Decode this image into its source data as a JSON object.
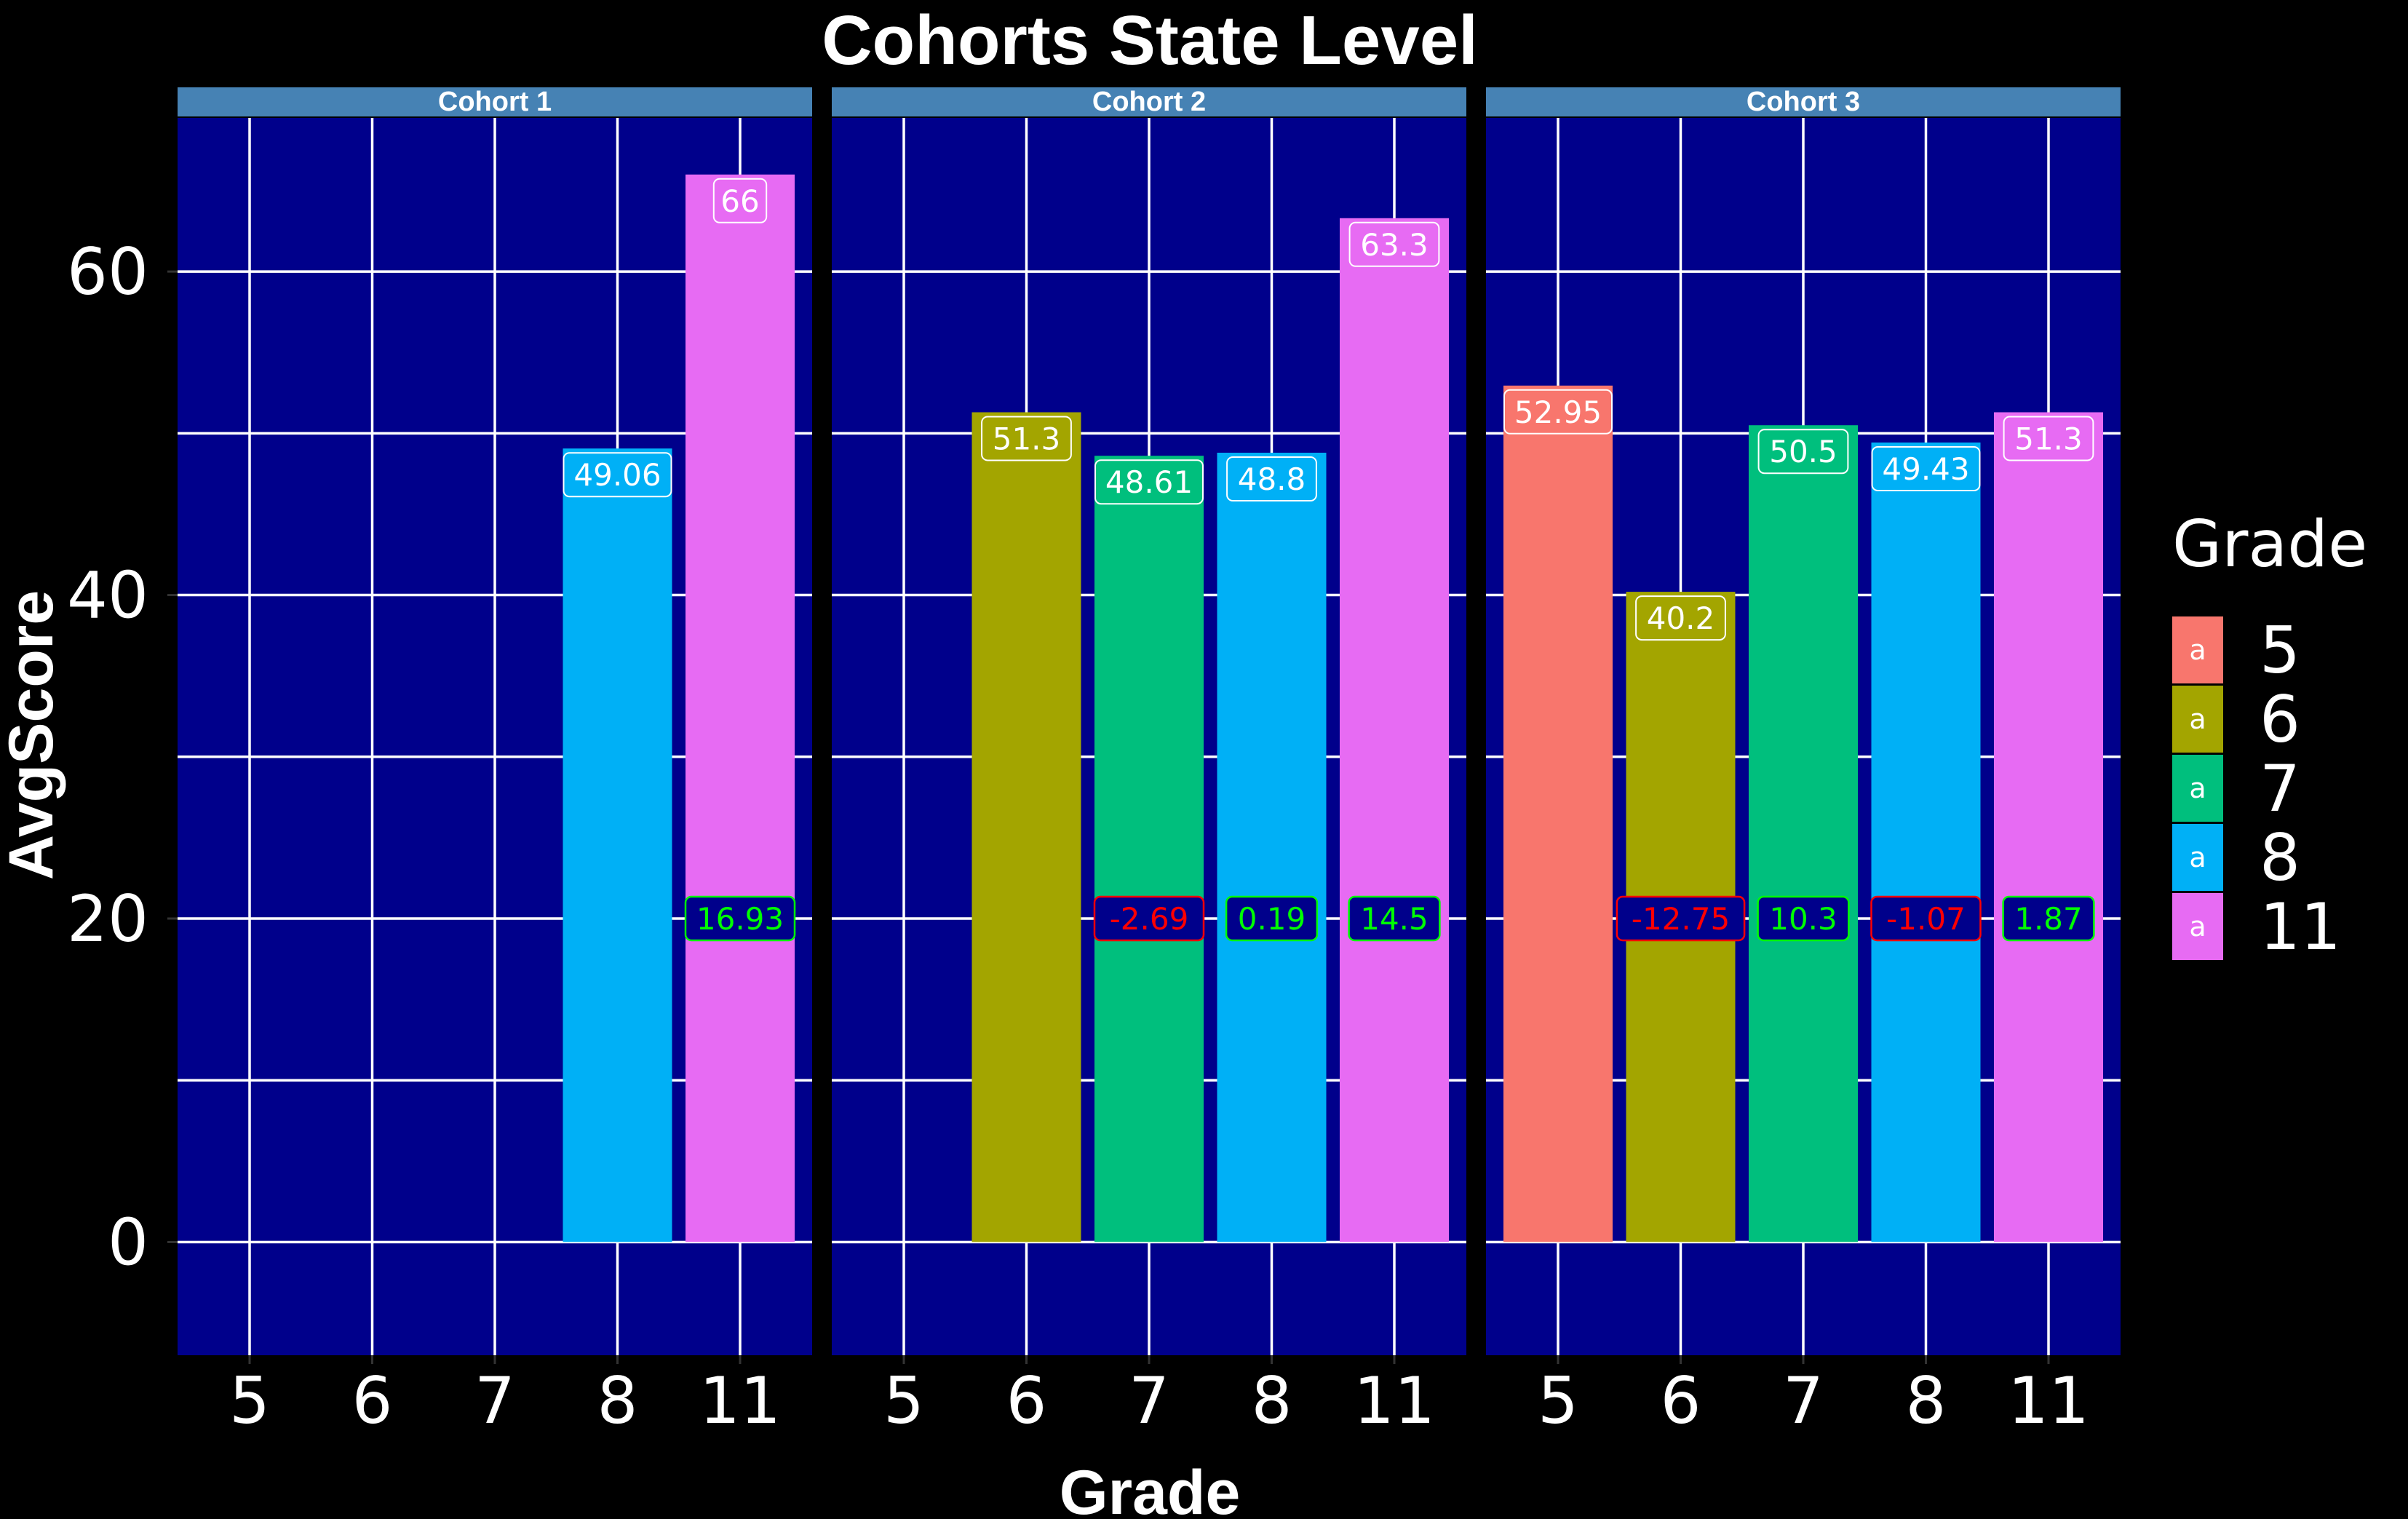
{
  "chart_data": {
    "type": "bar",
    "title": "Cohorts State Level",
    "xlabel": "Grade",
    "ylabel": "AvgScore",
    "categories": [
      "5",
      "6",
      "7",
      "8",
      "11"
    ],
    "ylim": [
      -7,
      69.5
    ],
    "yticks": [
      0,
      20,
      40,
      60
    ],
    "grid": true,
    "legend": {
      "title": "Grade",
      "placement": "right",
      "key_glyph": "a",
      "entries": [
        {
          "label": "5",
          "color": "#F8766D"
        },
        {
          "label": "6",
          "color": "#A3A500"
        },
        {
          "label": "7",
          "color": "#00BF7D"
        },
        {
          "label": "8",
          "color": "#00B0F6"
        },
        {
          "label": "11",
          "color": "#E76BF3"
        }
      ]
    },
    "panels": [
      {
        "name": "Cohort 1",
        "bars": [
          {
            "grade": "8",
            "value": 49.06,
            "label": "49.06"
          },
          {
            "grade": "11",
            "value": 66,
            "label": "66"
          }
        ],
        "changes": [
          {
            "grade": "11",
            "value": 16.93
          }
        ]
      },
      {
        "name": "Cohort 2",
        "bars": [
          {
            "grade": "6",
            "value": 51.3,
            "label": "51.3"
          },
          {
            "grade": "7",
            "value": 48.61,
            "label": "48.61"
          },
          {
            "grade": "8",
            "value": 48.8,
            "label": "48.8"
          },
          {
            "grade": "11",
            "value": 63.3,
            "label": "63.3"
          }
        ],
        "changes": [
          {
            "grade": "7",
            "value": -2.69
          },
          {
            "grade": "8",
            "value": 0.19
          },
          {
            "grade": "11",
            "value": 14.5
          }
        ]
      },
      {
        "name": "Cohort 3",
        "bars": [
          {
            "grade": "5",
            "value": 52.95,
            "label": "52.95"
          },
          {
            "grade": "6",
            "value": 40.2,
            "label": "40.2"
          },
          {
            "grade": "7",
            "value": 50.5,
            "label": "50.5"
          },
          {
            "grade": "8",
            "value": 49.43,
            "label": "49.43"
          },
          {
            "grade": "11",
            "value": 51.3,
            "label": "51.3"
          }
        ],
        "changes": [
          {
            "grade": "6",
            "value": -12.75
          },
          {
            "grade": "7",
            "value": 10.3
          },
          {
            "grade": "8",
            "value": -1.07
          },
          {
            "grade": "11",
            "value": 1.87
          }
        ]
      }
    ],
    "change_label_y": 20,
    "colors": {
      "background": "#000000",
      "panel": "#00008B",
      "strip": "#4682B4",
      "grid": "#ffffff",
      "positive_change": "#00FF00",
      "negative_change": "#FF0000"
    }
  }
}
